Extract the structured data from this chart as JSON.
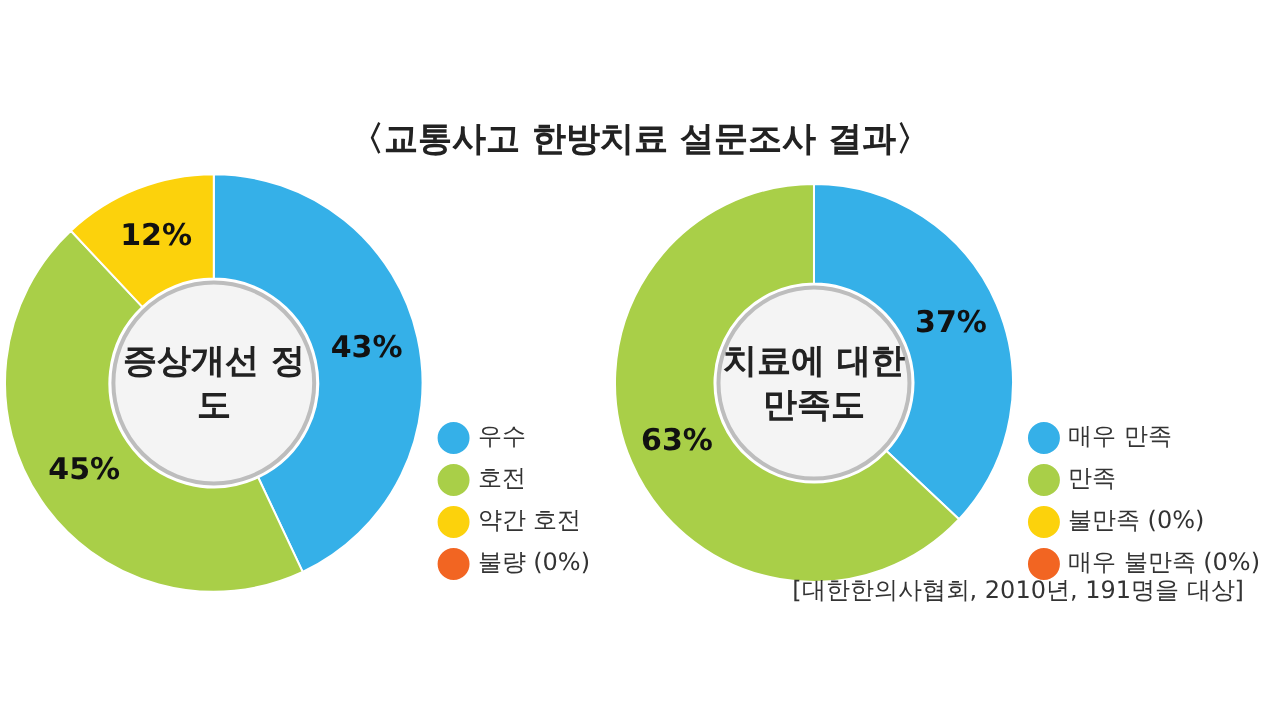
{
  "chart_data": [
    {
      "type": "donut",
      "title": "증상개선 정도",
      "annotations": [
        "〈교통사고 한방치료 설문조사 결과〉"
      ],
      "categories": [
        "우수",
        "호전",
        "약간 호전",
        "불량 (0%)"
      ],
      "values": [
        43,
        45,
        12,
        0
      ],
      "colors": [
        "#35b0e8",
        "#a9cf48",
        "#fcd20c",
        "#f26522"
      ],
      "value_labels": [
        "43%",
        "45%",
        "12%",
        null
      ],
      "legend": "right"
    },
    {
      "type": "donut",
      "title": "치료에 대한 만족도",
      "annotations": [
        "[대한한의사협회, 2010년, 191명을 대상]"
      ],
      "categories": [
        "매우 만족",
        "만족",
        "불만족 (0%)",
        "매우 불만족 (0%)"
      ],
      "values": [
        37,
        63,
        0,
        0
      ],
      "colors": [
        "#35b0e8",
        "#a9cf48",
        "#fcd20c",
        "#f26522"
      ],
      "value_labels": [
        "37%",
        "63%",
        null,
        null
      ],
      "legend": "right"
    }
  ]
}
